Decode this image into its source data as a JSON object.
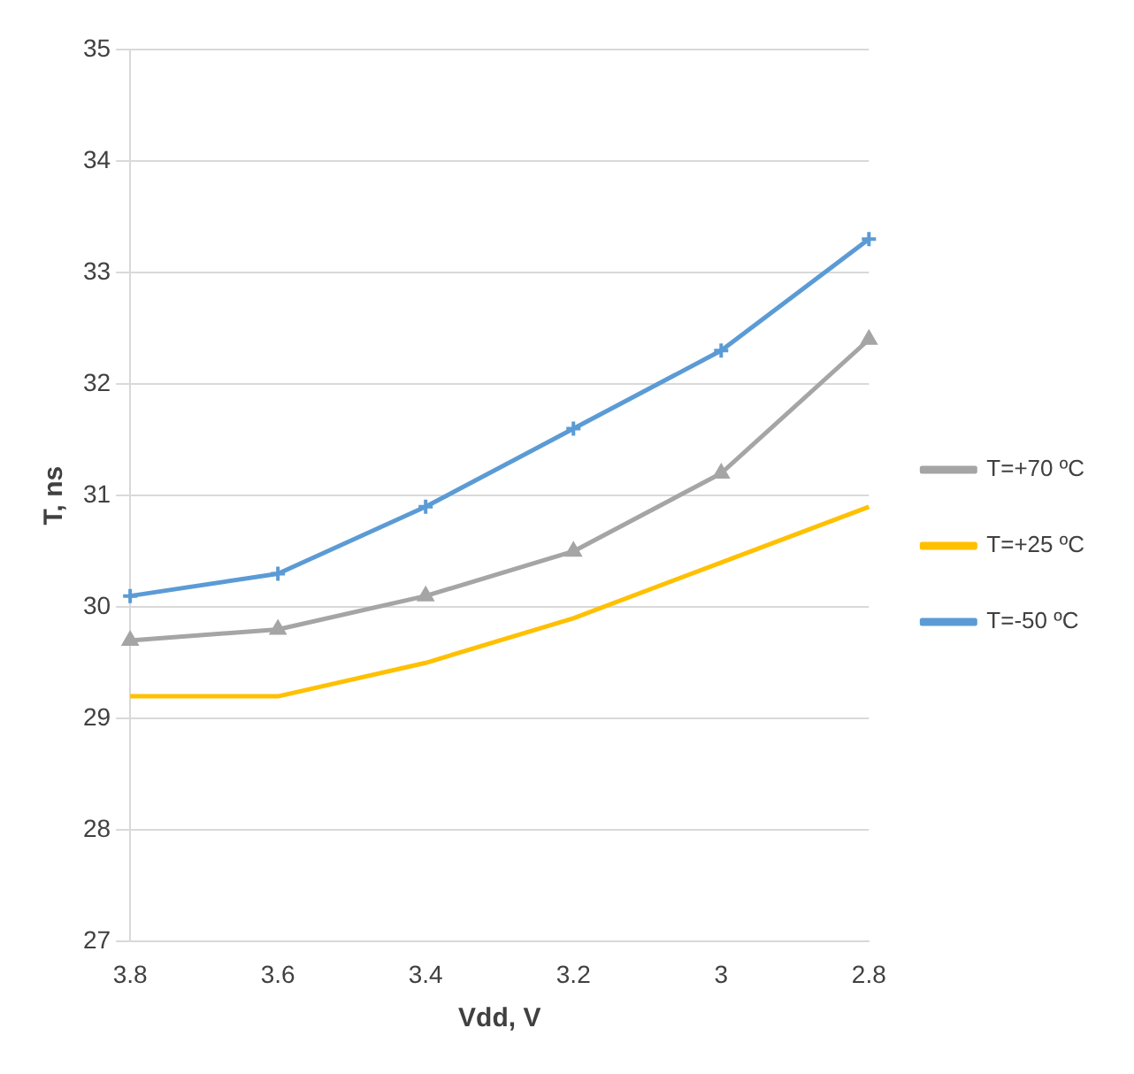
{
  "chart_data": {
    "type": "line",
    "xlabel": "Vdd, V",
    "ylabel": "T, ns",
    "categories": [
      "3.8",
      "3.6",
      "3.4",
      "3.2",
      "3",
      "2.8"
    ],
    "series": [
      {
        "name": "T=+70 ºC",
        "color": "#a5a5a5",
        "marker": "triangle",
        "values": [
          29.7,
          29.8,
          30.1,
          30.5,
          31.2,
          32.4
        ]
      },
      {
        "name": "T=+25 ºC",
        "color": "#ffc000",
        "marker": "none",
        "values": [
          29.2,
          29.2,
          29.5,
          29.9,
          30.4,
          30.9
        ]
      },
      {
        "name": "T=-50 ºC",
        "color": "#5b9bd5",
        "marker": "cross",
        "values": [
          30.1,
          30.3,
          30.9,
          31.6,
          32.3,
          33.3
        ]
      }
    ],
    "ylim": [
      27,
      35
    ],
    "yticks": [
      27,
      28,
      29,
      30,
      31,
      32,
      33,
      34,
      35
    ],
    "grid": "y",
    "legend": "right"
  }
}
